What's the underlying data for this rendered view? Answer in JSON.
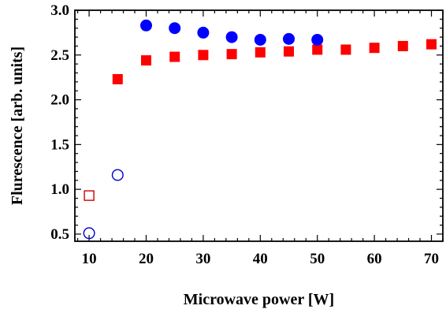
{
  "chart_data": {
    "type": "scatter",
    "title": "",
    "xlabel": "Microwave power [W]",
    "ylabel": "Flurescence [arb. units]",
    "xlim": [
      7.5,
      72
    ],
    "ylim": [
      0.42,
      3.0
    ],
    "grid": false,
    "legend": "none",
    "xticks": [
      "10",
      "20",
      "30",
      "40",
      "50",
      "60",
      "70"
    ],
    "yticks": [
      "0.5",
      "1.0",
      "1.5",
      "2.0",
      "2.5",
      "3.0"
    ],
    "xtick_values": [
      10,
      20,
      30,
      40,
      50,
      60,
      70
    ],
    "ytick_values": [
      0.5,
      1.0,
      1.5,
      2.0,
      2.5,
      3.0
    ],
    "series": [
      {
        "marker": "square-filled",
        "color": "#ff0000",
        "x": [
          15,
          20,
          25,
          30,
          35,
          40,
          45,
          50,
          55,
          60,
          65,
          70
        ],
        "y": [
          2.23,
          2.44,
          2.48,
          2.5,
          2.51,
          2.53,
          2.54,
          2.56,
          2.56,
          2.58,
          2.6,
          2.62
        ]
      },
      {
        "marker": "square-open",
        "color": "#cc0000",
        "x": [
          10
        ],
        "y": [
          0.93
        ]
      },
      {
        "marker": "circle-filled",
        "color": "#0000ff",
        "x": [
          20,
          25,
          30,
          35,
          40,
          45,
          50
        ],
        "y": [
          2.83,
          2.8,
          2.75,
          2.7,
          2.67,
          2.68,
          2.67
        ]
      },
      {
        "marker": "circle-open",
        "color": "#0000cc",
        "x": [
          10,
          15
        ],
        "y": [
          0.51,
          1.16
        ]
      }
    ]
  }
}
